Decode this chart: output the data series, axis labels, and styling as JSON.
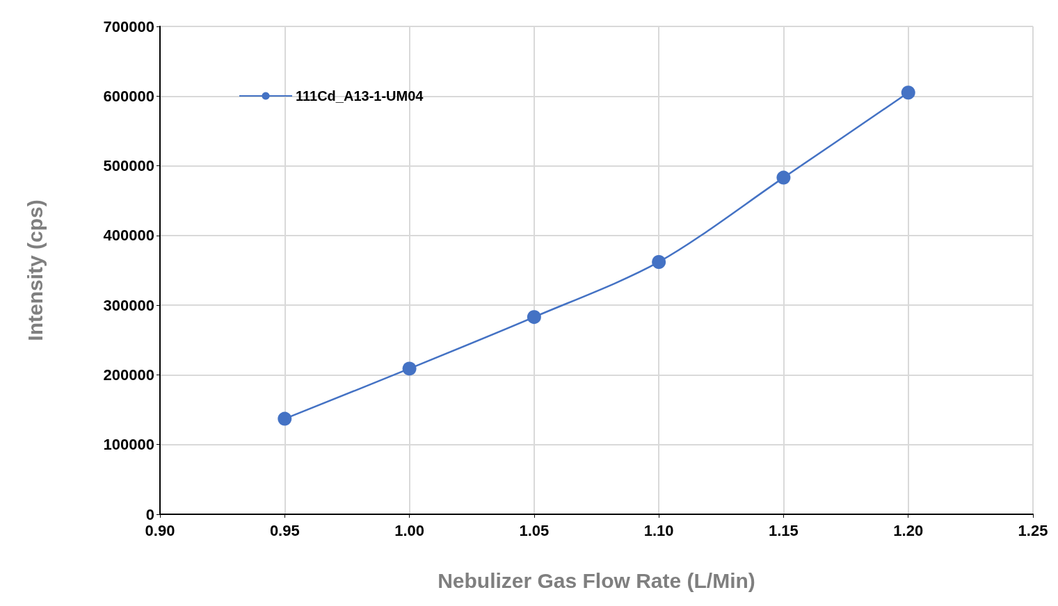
{
  "chart_data": {
    "type": "line",
    "xlabel": "Nebulizer Gas Flow Rate (L/Min)",
    "ylabel": "Intensity (cps)",
    "x": [
      0.95,
      1.0,
      1.05,
      1.1,
      1.15,
      1.2
    ],
    "series": [
      {
        "name": "111Cd_A13-1-UM04",
        "color": "#4472c4",
        "values": [
          137000,
          209000,
          283000,
          362000,
          483000,
          605000
        ]
      }
    ],
    "xlim": [
      0.9,
      1.25
    ],
    "xticks": [
      {
        "value": 0.9,
        "label": "0.90"
      },
      {
        "value": 0.95,
        "label": "0.95"
      },
      {
        "value": 1.0,
        "label": "1.00"
      },
      {
        "value": 1.05,
        "label": "1.05"
      },
      {
        "value": 1.1,
        "label": "1.10"
      },
      {
        "value": 1.15,
        "label": "1.15"
      },
      {
        "value": 1.2,
        "label": "1.20"
      },
      {
        "value": 1.25,
        "label": "1.25"
      }
    ],
    "ylim": [
      0,
      700000
    ],
    "yticks": [
      0,
      100000,
      200000,
      300000,
      400000,
      500000,
      600000,
      700000
    ],
    "grid": true,
    "legend": "top left",
    "marker": "circle",
    "line_style": "solid"
  }
}
